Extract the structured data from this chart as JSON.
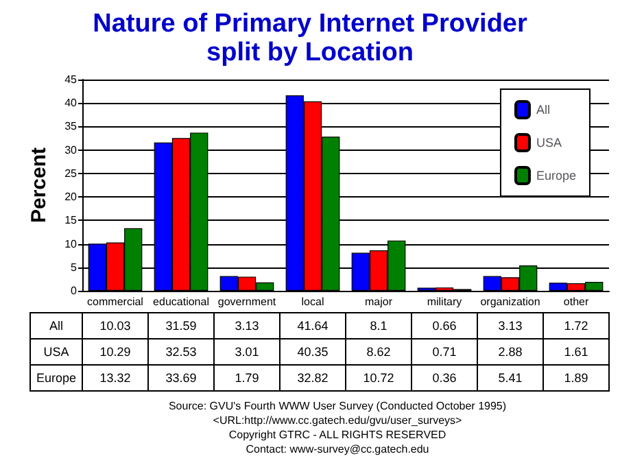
{
  "chart_data": {
    "type": "bar",
    "title": "Nature of Primary Internet Provider\nsplit by Location",
    "ylabel": "Percent",
    "categories": [
      "commercial",
      "educational",
      "government",
      "local",
      "major",
      "military",
      "organization",
      "other"
    ],
    "series": [
      {
        "name": "All",
        "color": "#0000ff",
        "values": [
          10.03,
          31.59,
          3.13,
          41.64,
          8.1,
          0.66,
          3.13,
          1.72
        ]
      },
      {
        "name": "USA",
        "color": "#ff0000",
        "values": [
          10.29,
          32.53,
          3.01,
          40.35,
          8.62,
          0.71,
          2.88,
          1.61
        ]
      },
      {
        "name": "Europe",
        "color": "#008000",
        "values": [
          13.32,
          33.69,
          1.79,
          32.82,
          10.72,
          0.36,
          5.41,
          1.89
        ]
      }
    ],
    "ylim": [
      0,
      45
    ],
    "yticks": [
      0,
      5,
      10,
      15,
      20,
      25,
      30,
      35,
      40,
      45
    ],
    "grid": "y",
    "legend": "top right",
    "data_labels": true,
    "annotations": [
      "Source: GVU's Fourth WWW User Survey (Conducted October 1995)",
      "<URL:http://www.cc.gatech.edu/gvu/user_surveys>",
      "Copyright GTRC - ALL RIGHTS RESERVED",
      "Contact: www-survey@cc.gatech.edu"
    ]
  }
}
